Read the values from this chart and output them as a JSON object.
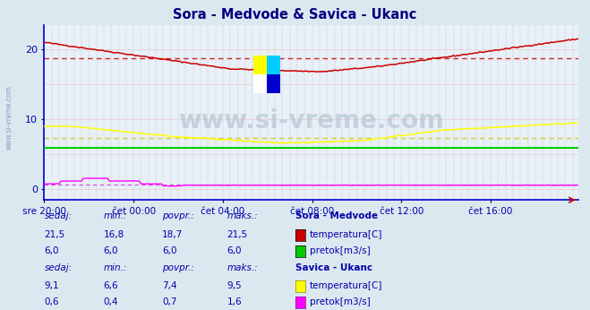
{
  "title": "Sora - Medvode & Savica - Ukanc",
  "title_color": "#000080",
  "bg_color": "#dce8f0",
  "plot_bg_color": "#e8f0f8",
  "grid_color_v": "#c8b8b8",
  "grid_color_h": "#e8c8c8",
  "xlabel_color": "#0000aa",
  "watermark_text": "www.si-vreme.com",
  "xticklabels": [
    "sre 20:00",
    "čet 00:00",
    "čet 04:00",
    "čet 08:00",
    "čet 12:00",
    "čet 16:00"
  ],
  "xtick_positions": [
    0,
    48,
    96,
    144,
    192,
    240
  ],
  "total_points": 288,
  "ylim": [
    -1.5,
    23.5
  ],
  "yticks": [
    0,
    10,
    20
  ],
  "sora_temp_color": "#cc0000",
  "sora_pretok_color": "#00cc00",
  "ukanc_temp_color": "#ffff00",
  "ukanc_pretok_color": "#ff00ff",
  "sora_temp_avg": 18.7,
  "sora_temp_min": 16.8,
  "sora_temp_max": 21.5,
  "sora_temp_sedaj": 21.5,
  "sora_pretok_avg": 6.0,
  "sora_pretok_min": 6.0,
  "sora_pretok_max": 6.0,
  "sora_pretok_sedaj": 6.0,
  "ukanc_temp_avg": 7.4,
  "ukanc_temp_min": 6.6,
  "ukanc_temp_max": 9.5,
  "ukanc_temp_sedaj": 9.1,
  "ukanc_pretok_avg": 0.7,
  "ukanc_pretok_min": 0.4,
  "ukanc_pretok_max": 1.6,
  "ukanc_pretok_sedaj": 0.6,
  "axis_color": "#0000cc",
  "legend_text_color": "#0000aa",
  "left_text_color": "#6699aa"
}
